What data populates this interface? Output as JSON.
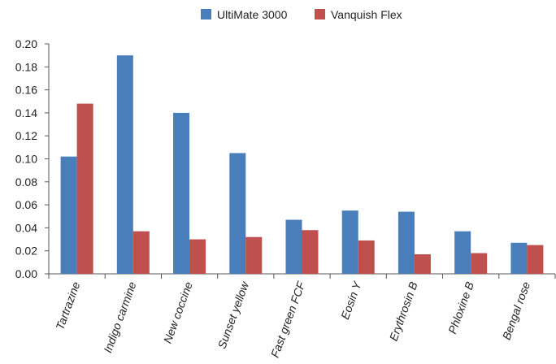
{
  "chart_data": {
    "type": "bar",
    "title": "",
    "xlabel": "",
    "ylabel": "",
    "categories": [
      "Tartrazine",
      "Indigo carmine",
      "New coccine",
      "Sunset yellow",
      "Fast green FCF",
      "Eosin Y",
      "Erythrosin B",
      "Phloxine B",
      "Bengal rose"
    ],
    "series": [
      {
        "name": "UltiMate 3000",
        "color": "#4a7ebb",
        "values": [
          0.102,
          0.19,
          0.14,
          0.105,
          0.047,
          0.055,
          0.054,
          0.037,
          0.027
        ]
      },
      {
        "name": "Vanquish Flex",
        "color": "#c0504d",
        "values": [
          0.148,
          0.037,
          0.03,
          0.032,
          0.038,
          0.029,
          0.017,
          0.018,
          0.025
        ]
      }
    ],
    "ylim": [
      0,
      0.2
    ],
    "yticks": [
      "0.00",
      "0.02",
      "0.04",
      "0.06",
      "0.08",
      "0.10",
      "0.12",
      "0.14",
      "0.16",
      "0.18",
      "0.20"
    ],
    "grid": false,
    "legend_position": "top-center"
  }
}
